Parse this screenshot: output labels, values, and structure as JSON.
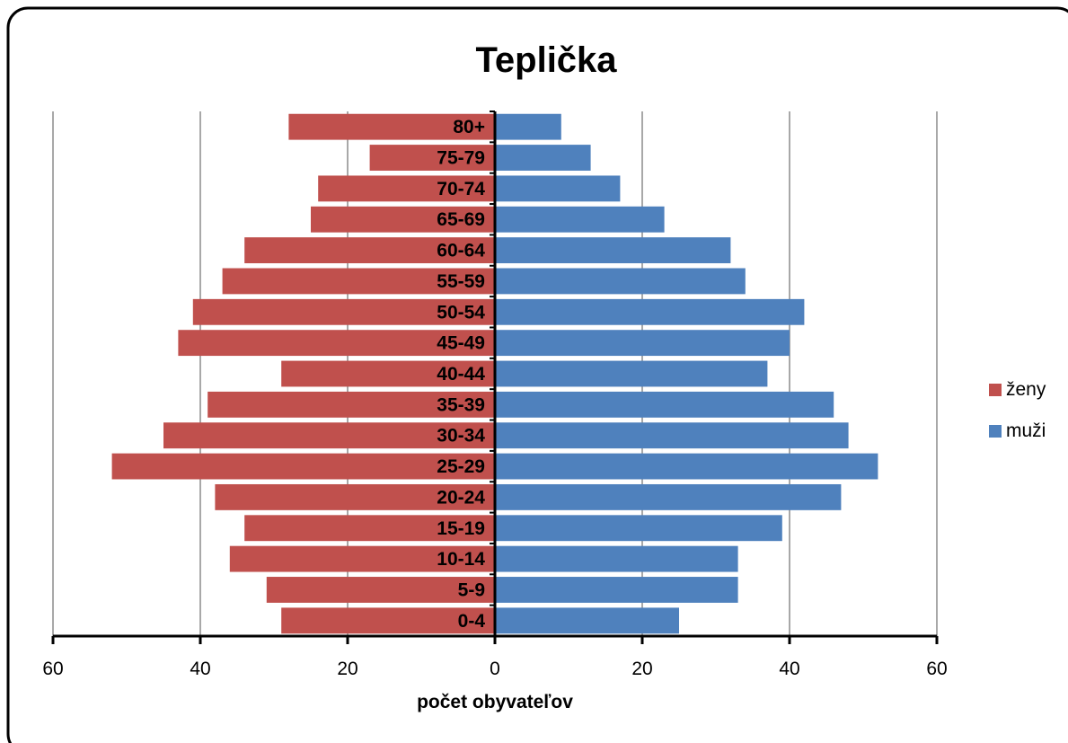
{
  "chart_data": {
    "type": "bar",
    "orientation": "horizontal-population-pyramid",
    "title": "Teplička",
    "xlabel": "počet obyvateľov",
    "ylabel": "",
    "categories": [
      "0-4",
      "5-9",
      "10-14",
      "15-19",
      "20-24",
      "25-29",
      "30-34",
      "35-39",
      "40-44",
      "45-49",
      "50-54",
      "55-59",
      "60-64",
      "65-69",
      "70-74",
      "75-79",
      "80+"
    ],
    "series": [
      {
        "name": "ženy",
        "color": "#c0504d",
        "side": "left",
        "values": [
          29,
          31,
          36,
          34,
          38,
          52,
          45,
          39,
          29,
          43,
          41,
          37,
          34,
          25,
          24,
          17,
          28
        ]
      },
      {
        "name": "muži",
        "color": "#4f81bd",
        "side": "right",
        "values": [
          25,
          33,
          33,
          39,
          47,
          52,
          48,
          46,
          37,
          40,
          42,
          34,
          32,
          23,
          17,
          13,
          9
        ]
      }
    ],
    "xlim": [
      -60,
      60
    ],
    "xticks": [
      -60,
      -40,
      -20,
      0,
      20,
      40,
      60
    ],
    "xtick_labels": [
      "60",
      "40",
      "20",
      "0",
      "20",
      "40",
      "60"
    ],
    "grid": true,
    "legend_position": "right"
  }
}
